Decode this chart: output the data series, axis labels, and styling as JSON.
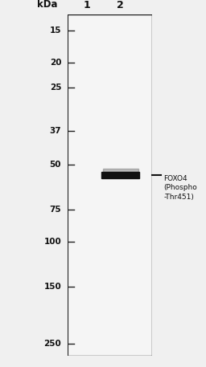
{
  "background_color": "#f0f0f0",
  "gel_background": "#f5f5f5",
  "left_strip_color": "#1a1a1a",
  "border_color": "#1a1a1a",
  "fig_width": 2.56,
  "fig_height": 4.57,
  "kda_label": "kDa",
  "lane_labels": [
    "1",
    "2"
  ],
  "marker_weights": [
    250,
    150,
    100,
    75,
    50,
    37,
    25,
    20,
    15
  ],
  "band_kda": 55,
  "band_color": "#111111",
  "annotation_text": "FOXO4\n(Phospho\n-Thr451)",
  "annotation_line_kda": 55,
  "tick_fontsize": 7.5,
  "kda_fontsize": 8.5,
  "lane_label_fontsize": 9,
  "annotation_fontsize": 6.5,
  "log_min_kda": 13,
  "log_max_kda": 280
}
